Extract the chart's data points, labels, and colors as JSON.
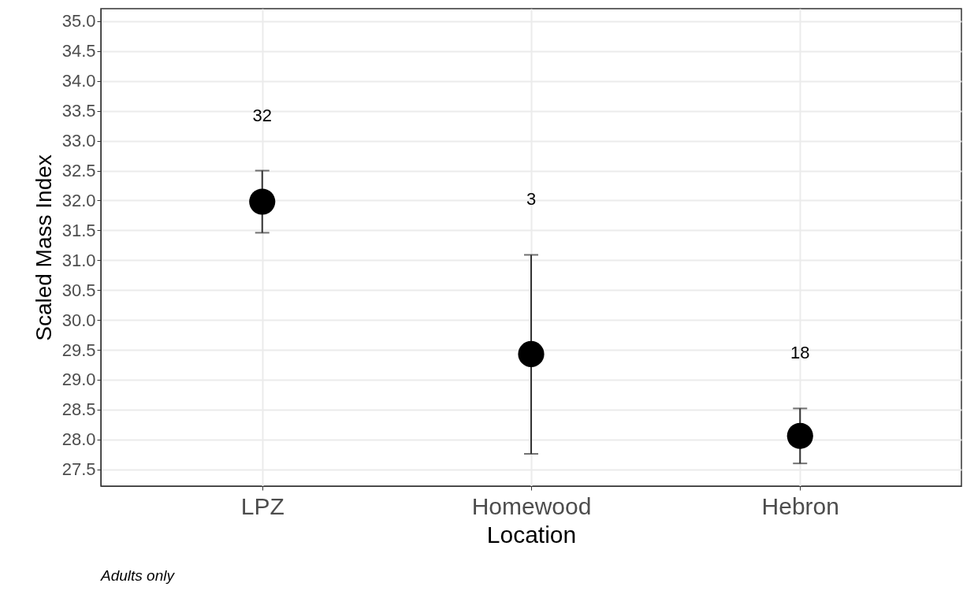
{
  "chart_data": {
    "type": "scatter",
    "xlabel": "Location",
    "ylabel": "Scaled Mass Index",
    "categories": [
      "LPZ",
      "Homewood",
      "Hebron"
    ],
    "series": [
      {
        "color": "#000000",
        "values": [
          31.98,
          29.43,
          28.06
        ],
        "errors": [
          [
            31.46,
            32.5
          ],
          [
            27.76,
            31.09
          ],
          [
            27.6,
            28.52
          ]
        ]
      }
    ],
    "ylim": [
      27.22,
      35.21
    ],
    "yticks": [
      27.5,
      {
        "value": 28,
        "label": "28.0"
      },
      28.5,
      {
        "value": 29,
        "label": "29.0"
      },
      29.5,
      {
        "value": 30,
        "label": "30.0"
      },
      30.5,
      {
        "value": 31,
        "label": "31.0"
      },
      31.5,
      {
        "value": 32,
        "label": "32.0"
      },
      32.5,
      {
        "value": 33,
        "label": "33.0"
      },
      33.5,
      {
        "value": 34,
        "label": "34.0"
      },
      34.5,
      {
        "value": 35,
        "label": "35.0"
      }
    ],
    "grid": true,
    "marker": "circle",
    "annotations": [
      "32",
      "3",
      "18",
      "Adults only"
    ]
  }
}
